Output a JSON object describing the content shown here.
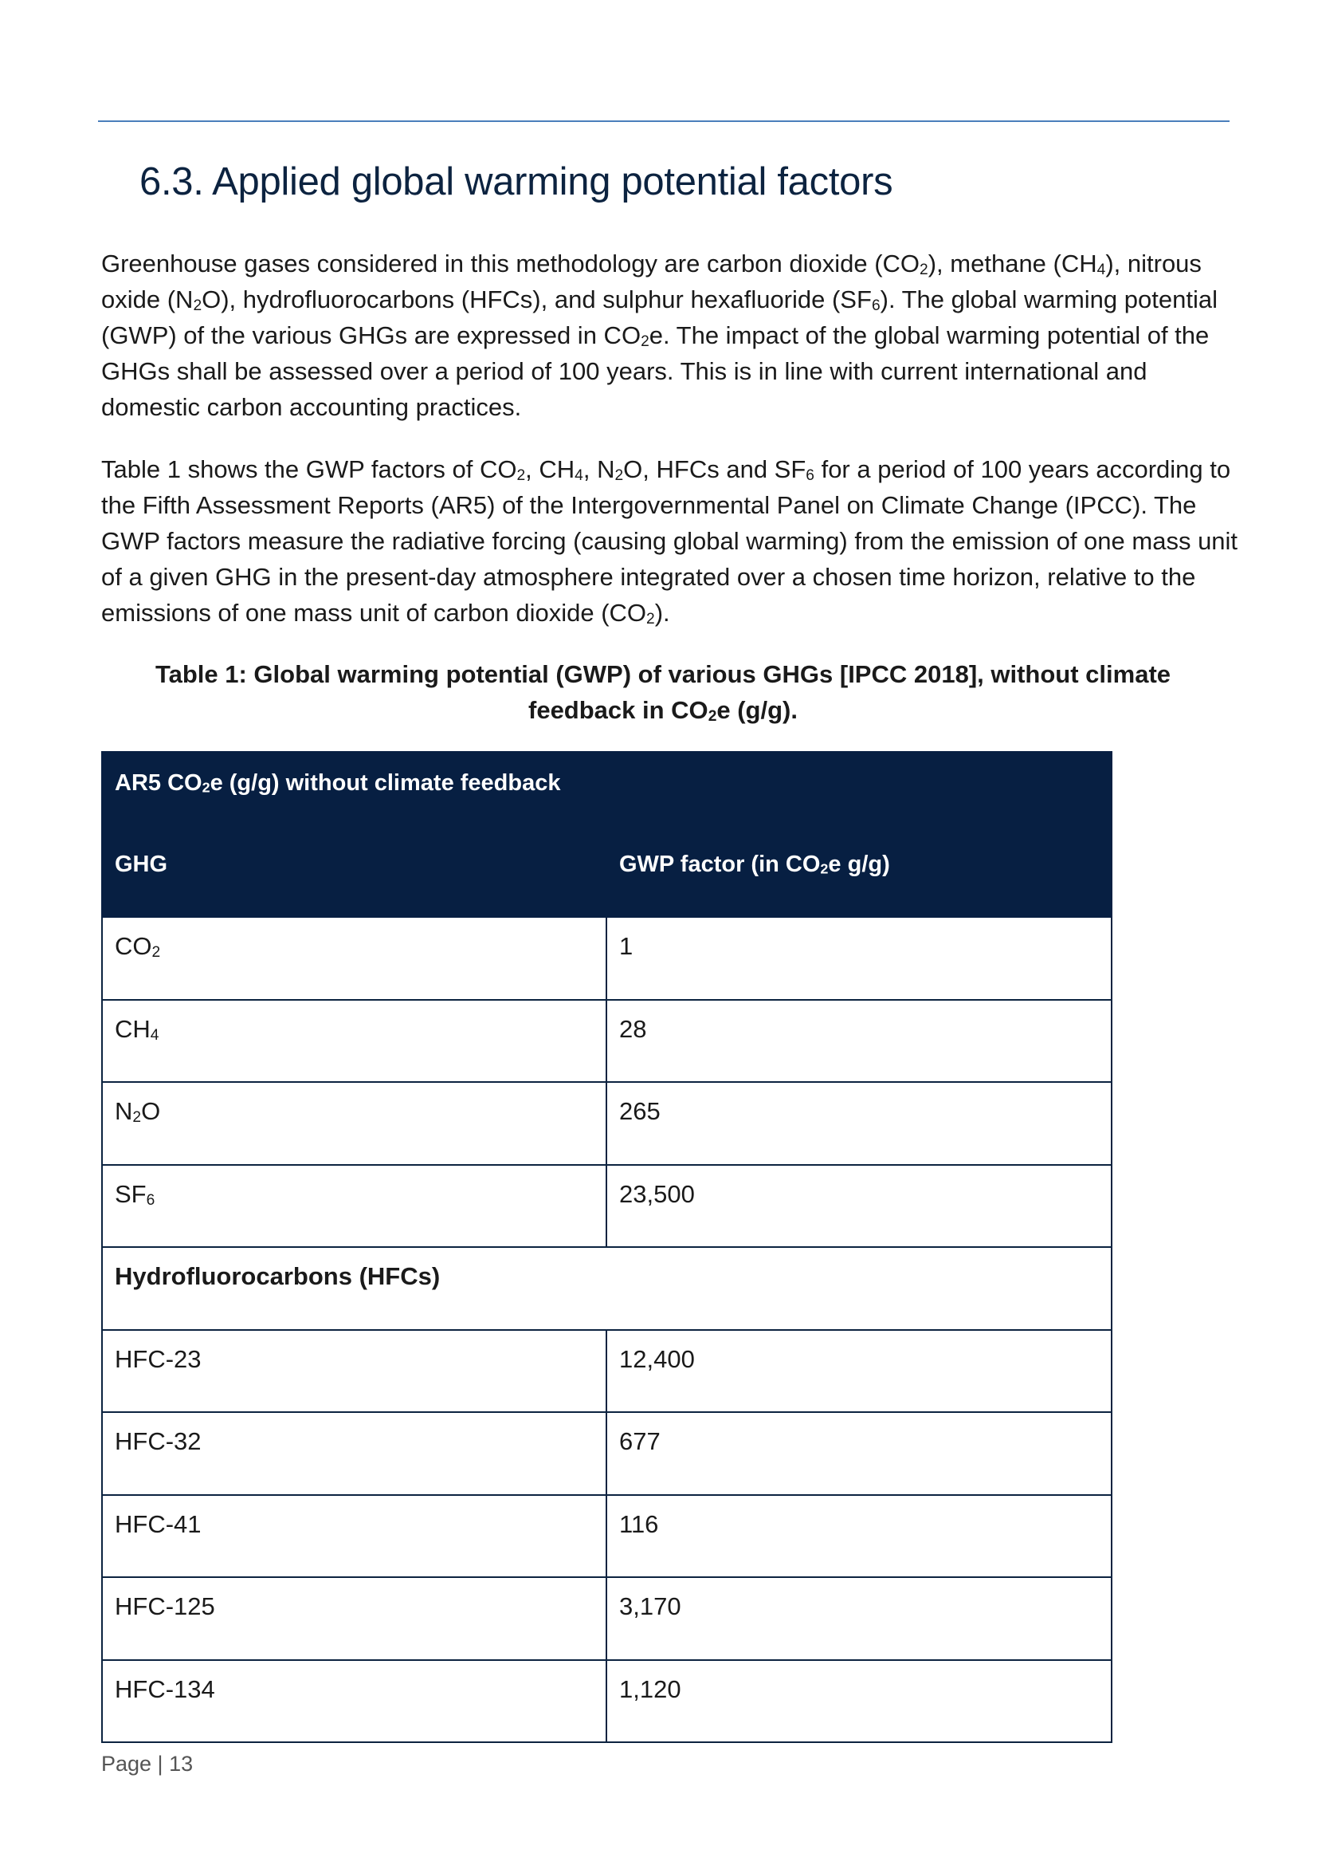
{
  "section": {
    "heading": "6.3. Applied global warming potential factors"
  },
  "paragraphs": {
    "p1": [
      "Greenhouse gases considered in this methodology are carbon dioxide (CO",
      "2",
      "), methane (CH",
      "4",
      "), nitrous oxide (N",
      "2",
      "O), hydrofluorocarbons (HFCs), and sulphur hexafluoride (SF",
      "6",
      "). The global warming potential (GWP) of the various GHGs are expressed in CO",
      "2",
      "e. The impact of the global warming potential of the GHGs shall be assessed over a period of 100 years. This is in line with current international and domestic carbon accounting practices."
    ],
    "p2": [
      "Table 1 shows the GWP factors of CO",
      "2",
      ", CH",
      "4",
      ", N",
      "2",
      "O, HFCs and SF",
      "6",
      " for a period of 100 years according to the Fifth Assessment Reports (AR5) of the Intergovernmental Panel on Climate Change (IPCC). The GWP factors measure the radiative forcing (causing global warming) from the emission of one mass unit of a given GHG in the present-day atmosphere integrated over a chosen time horizon, relative to the emissions of one mass unit of carbon dioxide (CO",
      "2",
      ")."
    ]
  },
  "table": {
    "caption": [
      "Table 1: Global warming potential (GWP) of various GHGs [IPCC 2018], without climate feedback in CO",
      "2",
      "e (g/g)."
    ],
    "title": [
      "AR5 CO",
      "2",
      "e (g/g) without climate feedback"
    ],
    "col_ghg": "GHG",
    "col_gwp": [
      "GWP factor (in CO",
      "2",
      "e g/g)"
    ],
    "rows": [
      {
        "gas": [
          "CO",
          "2",
          ""
        ],
        "value": "1"
      },
      {
        "gas": [
          "CH",
          "4",
          ""
        ],
        "value": "28"
      },
      {
        "gas": [
          "N",
          "2",
          "O"
        ],
        "value": "265"
      },
      {
        "gas": [
          "SF",
          "6",
          ""
        ],
        "value": "23,500"
      }
    ],
    "group_label": "Hydrofluorocarbons (HFCs)",
    "hfc_rows": [
      {
        "gas": "HFC-23",
        "value": "12,400"
      },
      {
        "gas": "HFC-32",
        "value": "677"
      },
      {
        "gas": "HFC-41",
        "value": "116"
      },
      {
        "gas": "HFC-125",
        "value": "3,170"
      },
      {
        "gas": "HFC-134",
        "value": "1,120"
      }
    ]
  },
  "footer": {
    "page_label": "Page | 13"
  },
  "colors": {
    "heading": "#0c2340",
    "rule": "#4a7ebb",
    "table_header": "#071f42"
  }
}
